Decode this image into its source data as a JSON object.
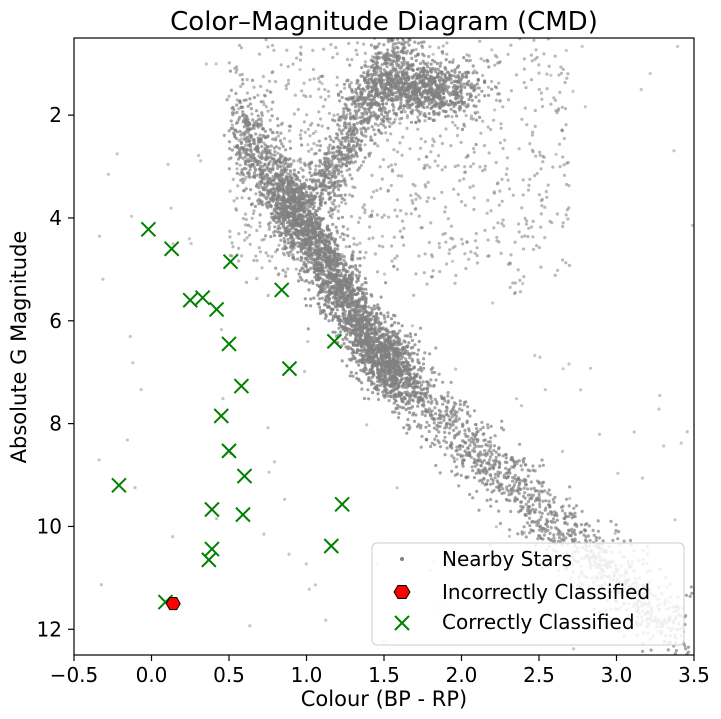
{
  "chart_data": {
    "type": "scatter",
    "title": "Color–Magnitude Diagram (CMD)",
    "xlabel": "Colour (BP - RP)",
    "ylabel": "Absolute G Magnitude",
    "xlim": [
      -0.5,
      3.5
    ],
    "ylim": [
      12.5,
      0.5
    ],
    "y_inverted": true,
    "x_ticks": [
      "−0.5",
      "0.0",
      "0.5",
      "1.0",
      "1.5",
      "2.0",
      "2.5",
      "3.0",
      "3.5"
    ],
    "x_tick_values": [
      -0.5,
      0.0,
      0.5,
      1.0,
      1.5,
      2.0,
      2.5,
      3.0,
      3.5
    ],
    "y_ticks": [
      "2",
      "4",
      "6",
      "8",
      "10",
      "12"
    ],
    "y_tick_values": [
      2,
      4,
      6,
      8,
      10,
      12
    ],
    "grid": false,
    "legend_position": "bottom-right",
    "series": [
      {
        "name": "Nearby Stars",
        "marker": "dot",
        "color": "#808080",
        "note": "dense background population: main sequence from (0.7,2.5) to (3.4,12.5), red giant clump near (1.7,1.5), white dwarf region sparse",
        "points": []
      },
      {
        "name": "Incorrectly Classified",
        "marker": "hexagon",
        "color": "#ff0000",
        "points": [
          [
            0.14,
            11.5
          ]
        ]
      },
      {
        "name": "Correctly Classified",
        "marker": "x",
        "color": "#008000",
        "points": [
          [
            -0.02,
            4.22
          ],
          [
            0.13,
            4.6
          ],
          [
            0.51,
            4.85
          ],
          [
            0.84,
            5.4
          ],
          [
            0.25,
            5.6
          ],
          [
            0.33,
            5.55
          ],
          [
            0.42,
            5.78
          ],
          [
            1.18,
            6.4
          ],
          [
            0.5,
            6.45
          ],
          [
            0.89,
            6.93
          ],
          [
            0.58,
            7.27
          ],
          [
            0.45,
            7.85
          ],
          [
            0.5,
            8.53
          ],
          [
            0.6,
            9.02
          ],
          [
            -0.21,
            9.2
          ],
          [
            1.23,
            9.57
          ],
          [
            0.39,
            9.67
          ],
          [
            0.59,
            9.77
          ],
          [
            1.16,
            10.38
          ],
          [
            0.39,
            10.44
          ],
          [
            0.37,
            10.65
          ],
          [
            0.09,
            11.47
          ]
        ]
      }
    ]
  }
}
